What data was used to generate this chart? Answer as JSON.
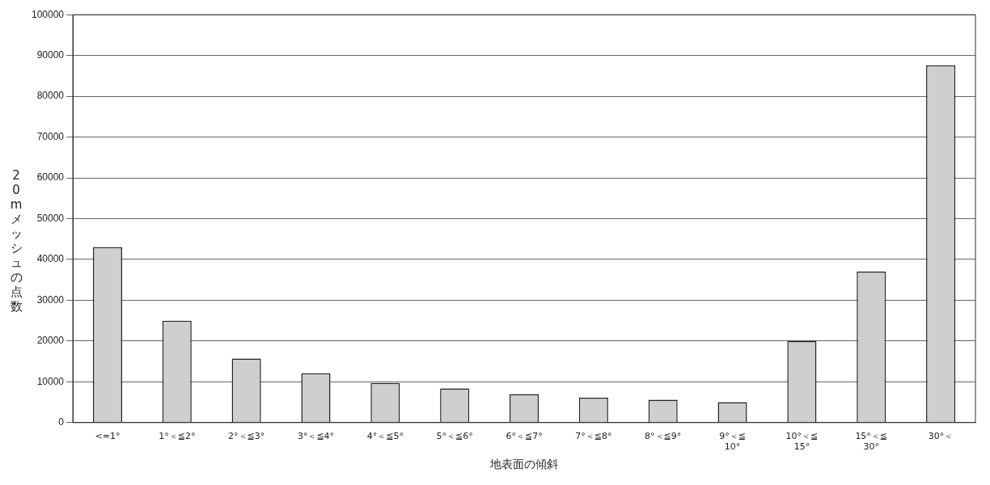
{
  "chart_data": {
    "type": "bar",
    "xlabel": "地表面の傾斜",
    "ylabel": "20mメッシュの点数",
    "categories": [
      "<=1°",
      "1°＜≦2°",
      "2°＜≦3°",
      "3°＜≦4°",
      "4°＜≦5°",
      "5°＜≦6°",
      "6°＜≦7°",
      "7°＜≦8°",
      "8°＜≦9°",
      "9°＜≦\n10°",
      "10°＜≦\n15°",
      "15°＜≦\n30°",
      "30°＜"
    ],
    "values": [
      43000,
      25000,
      15700,
      12100,
      9700,
      8400,
      7000,
      6100,
      5600,
      5000,
      20000,
      37000,
      87600
    ],
    "color": "#cfcfcf",
    "ylim": [
      0,
      100000
    ],
    "yticks": [
      0,
      10000,
      20000,
      30000,
      40000,
      50000,
      60000,
      70000,
      80000,
      90000,
      100000
    ],
    "grid": "y",
    "legend": false
  }
}
